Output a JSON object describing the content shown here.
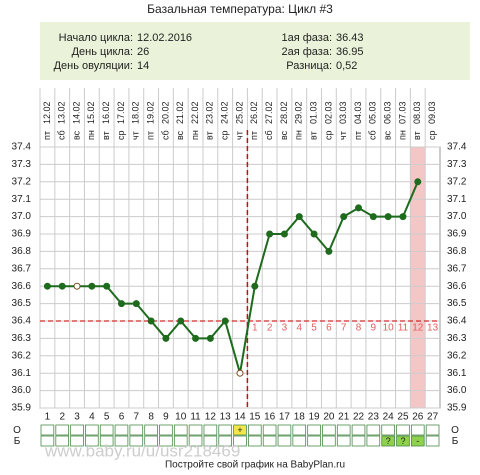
{
  "chart_data": {
    "type": "line",
    "title": "Базальная температура: Цикл #3",
    "summary": {
      "left": [
        {
          "label": "Начало цикла:",
          "value": "12.02.2016"
        },
        {
          "label": "День цикла:",
          "value": 26
        },
        {
          "label": "День овуляции:",
          "value": 14
        }
      ],
      "right": [
        {
          "label": "1ая фаза:",
          "value": 36.43
        },
        {
          "label": "2ая фаза:",
          "value": 36.95
        },
        {
          "label": "Разница:",
          "value": "0,52"
        }
      ]
    },
    "x": [
      1,
      2,
      3,
      4,
      5,
      6,
      7,
      8,
      9,
      10,
      11,
      12,
      13,
      14,
      15,
      16,
      17,
      18,
      19,
      20,
      21,
      22,
      23,
      24,
      25,
      26,
      27
    ],
    "weekdays": [
      "пт",
      "сб",
      "вс",
      "пн",
      "вт",
      "ср",
      "чт",
      "пт",
      "сб",
      "вс",
      "пн",
      "вт",
      "ср",
      "чт",
      "пт",
      "сб",
      "вс",
      "пн",
      "вт",
      "ср",
      "чт",
      "пт",
      "сб",
      "вс",
      "пн",
      "вт",
      "ср"
    ],
    "dates": [
      "12.02",
      "13.02",
      "14.02",
      "15.02",
      "16.02",
      "17.02",
      "18.02",
      "19.02",
      "20.02",
      "21.02",
      "22.02",
      "23.02",
      "24.02",
      "25.02",
      "26.02",
      "27.02",
      "28.02",
      "29.02",
      "01.03",
      "02.03",
      "03.03",
      "04.03",
      "05.03",
      "06.03",
      "07.03",
      "08.03",
      "09.03"
    ],
    "series": [
      {
        "name": "Температура",
        "color": "#1e6b1e",
        "values": [
          36.6,
          36.6,
          36.6,
          36.6,
          36.6,
          36.5,
          36.5,
          36.4,
          36.3,
          36.4,
          36.3,
          36.3,
          36.4,
          36.1,
          36.6,
          36.9,
          36.9,
          37.0,
          36.9,
          36.8,
          37.0,
          37.05,
          37.0,
          37.0,
          37.0,
          37.2,
          null
        ]
      }
    ],
    "hollow_points": [
      3,
      14
    ],
    "coverline": 36.4,
    "post_ovulation_labels": [
      1,
      2,
      3,
      4,
      5,
      6,
      7,
      8,
      9,
      10,
      11,
      12,
      13
    ],
    "ylim": [
      35.9,
      37.4
    ],
    "yticks": [
      35.9,
      {
        "value": 36,
        "label": "36.0"
      },
      36.1,
      36.2,
      36.3,
      36.4,
      36.5,
      36.6,
      36.7,
      36.8,
      36.9,
      {
        "value": 37,
        "label": "37.0"
      },
      37.1,
      37.2,
      37.3,
      37.4
    ],
    "grid": true,
    "row_labels": [
      "О",
      "Б"
    ],
    "rows": [
      [
        null,
        null,
        null,
        null,
        null,
        null,
        null,
        null,
        null,
        null,
        null,
        null,
        null,
        "+",
        null,
        null,
        null,
        null,
        null,
        null,
        null,
        null,
        null,
        null,
        null,
        null,
        null
      ],
      [
        null,
        null,
        null,
        null,
        null,
        null,
        null,
        null,
        null,
        null,
        null,
        null,
        null,
        null,
        null,
        null,
        null,
        null,
        null,
        null,
        null,
        null,
        null,
        "?",
        "?",
        "-",
        null
      ]
    ],
    "footer": "Постройте свой график на BabyPlan.ru",
    "watermark": "www.baby.ru/u/usr218469"
  }
}
